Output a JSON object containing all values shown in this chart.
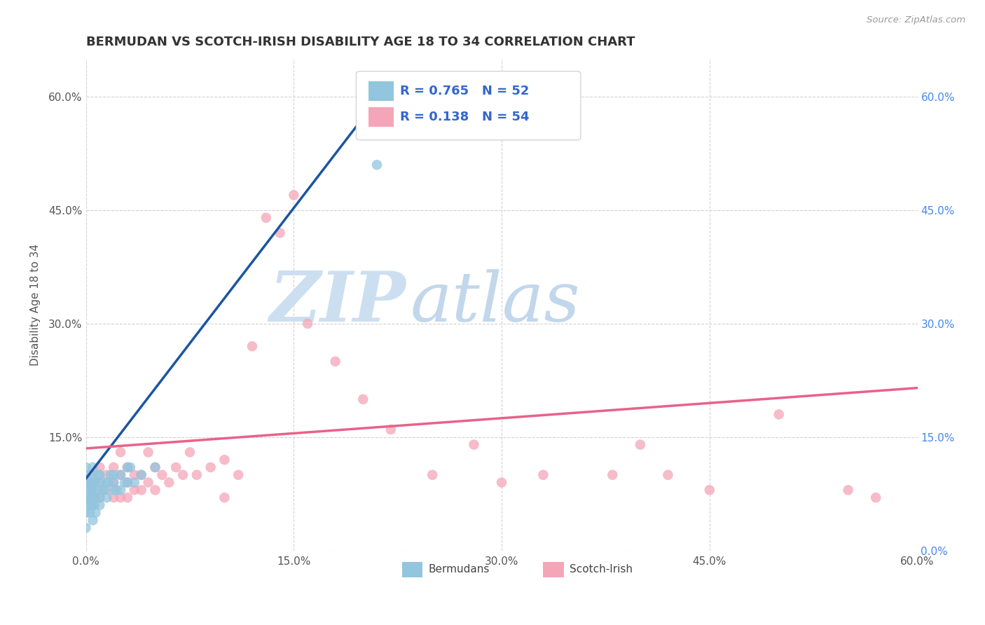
{
  "title": "BERMUDAN VS SCOTCH-IRISH DISABILITY AGE 18 TO 34 CORRELATION CHART",
  "source": "Source: ZipAtlas.com",
  "ylabel": "Disability Age 18 to 34",
  "xmin": 0.0,
  "xmax": 0.6,
  "ymin": 0.0,
  "ymax": 0.65,
  "xtick_values": [
    0.0,
    0.15,
    0.3,
    0.45,
    0.6
  ],
  "ytick_values": [
    0.0,
    0.15,
    0.3,
    0.45,
    0.6
  ],
  "legend_r1": "R = 0.765",
  "legend_n1": "N = 52",
  "legend_r2": "R = 0.138",
  "legend_n2": "N = 54",
  "color_blue": "#92c5de",
  "color_blue_line": "#1a56a0",
  "color_pink": "#f4a6b8",
  "color_pink_line": "#e8628a",
  "color_legend_text": "#3366cc",
  "watermark_color": "#ccdff0",
  "grid_color": "#c8c8c8",
  "background_color": "#ffffff",
  "blue_scatter_x": [
    0.0,
    0.0,
    0.0,
    0.0,
    0.0,
    0.0,
    0.0,
    0.0,
    0.003,
    0.003,
    0.003,
    0.003,
    0.003,
    0.005,
    0.005,
    0.005,
    0.005,
    0.005,
    0.005,
    0.007,
    0.007,
    0.007,
    0.01,
    0.01,
    0.01,
    0.01,
    0.012,
    0.015,
    0.015,
    0.02,
    0.02,
    0.02,
    0.025,
    0.025,
    0.03,
    0.03,
    0.035,
    0.04,
    0.05,
    0.006,
    0.008,
    0.002,
    0.001,
    0.004,
    0.009,
    0.013,
    0.016,
    0.018,
    0.022,
    0.028,
    0.032,
    0.21
  ],
  "blue_scatter_y": [
    0.05,
    0.06,
    0.07,
    0.08,
    0.09,
    0.1,
    0.11,
    0.03,
    0.05,
    0.07,
    0.08,
    0.09,
    0.1,
    0.04,
    0.06,
    0.07,
    0.08,
    0.09,
    0.11,
    0.05,
    0.07,
    0.09,
    0.06,
    0.07,
    0.09,
    0.1,
    0.08,
    0.07,
    0.09,
    0.08,
    0.09,
    0.1,
    0.08,
    0.1,
    0.09,
    0.11,
    0.09,
    0.1,
    0.11,
    0.06,
    0.08,
    0.09,
    0.07,
    0.06,
    0.1,
    0.08,
    0.09,
    0.1,
    0.08,
    0.09,
    0.11,
    0.51
  ],
  "pink_scatter_x": [
    0.0,
    0.005,
    0.005,
    0.01,
    0.01,
    0.01,
    0.015,
    0.015,
    0.02,
    0.02,
    0.02,
    0.025,
    0.025,
    0.025,
    0.03,
    0.03,
    0.03,
    0.035,
    0.035,
    0.04,
    0.04,
    0.045,
    0.045,
    0.05,
    0.05,
    0.055,
    0.06,
    0.065,
    0.07,
    0.075,
    0.08,
    0.09,
    0.1,
    0.1,
    0.11,
    0.12,
    0.13,
    0.14,
    0.15,
    0.16,
    0.18,
    0.2,
    0.22,
    0.25,
    0.28,
    0.3,
    0.33,
    0.38,
    0.4,
    0.42,
    0.45,
    0.5,
    0.55,
    0.57
  ],
  "pink_scatter_y": [
    0.09,
    0.08,
    0.1,
    0.07,
    0.09,
    0.11,
    0.08,
    0.1,
    0.07,
    0.09,
    0.11,
    0.07,
    0.1,
    0.13,
    0.07,
    0.09,
    0.11,
    0.08,
    0.1,
    0.08,
    0.1,
    0.09,
    0.13,
    0.08,
    0.11,
    0.1,
    0.09,
    0.11,
    0.1,
    0.13,
    0.1,
    0.11,
    0.07,
    0.12,
    0.1,
    0.27,
    0.44,
    0.42,
    0.47,
    0.3,
    0.25,
    0.2,
    0.16,
    0.1,
    0.14,
    0.09,
    0.1,
    0.1,
    0.14,
    0.1,
    0.08,
    0.18,
    0.08,
    0.07
  ],
  "blue_line_x0": 0.0,
  "blue_line_y0": 0.095,
  "blue_line_x1": 0.22,
  "blue_line_y1": 0.62,
  "pink_line_x0": 0.0,
  "pink_line_y0": 0.135,
  "pink_line_x1": 0.6,
  "pink_line_y1": 0.215
}
